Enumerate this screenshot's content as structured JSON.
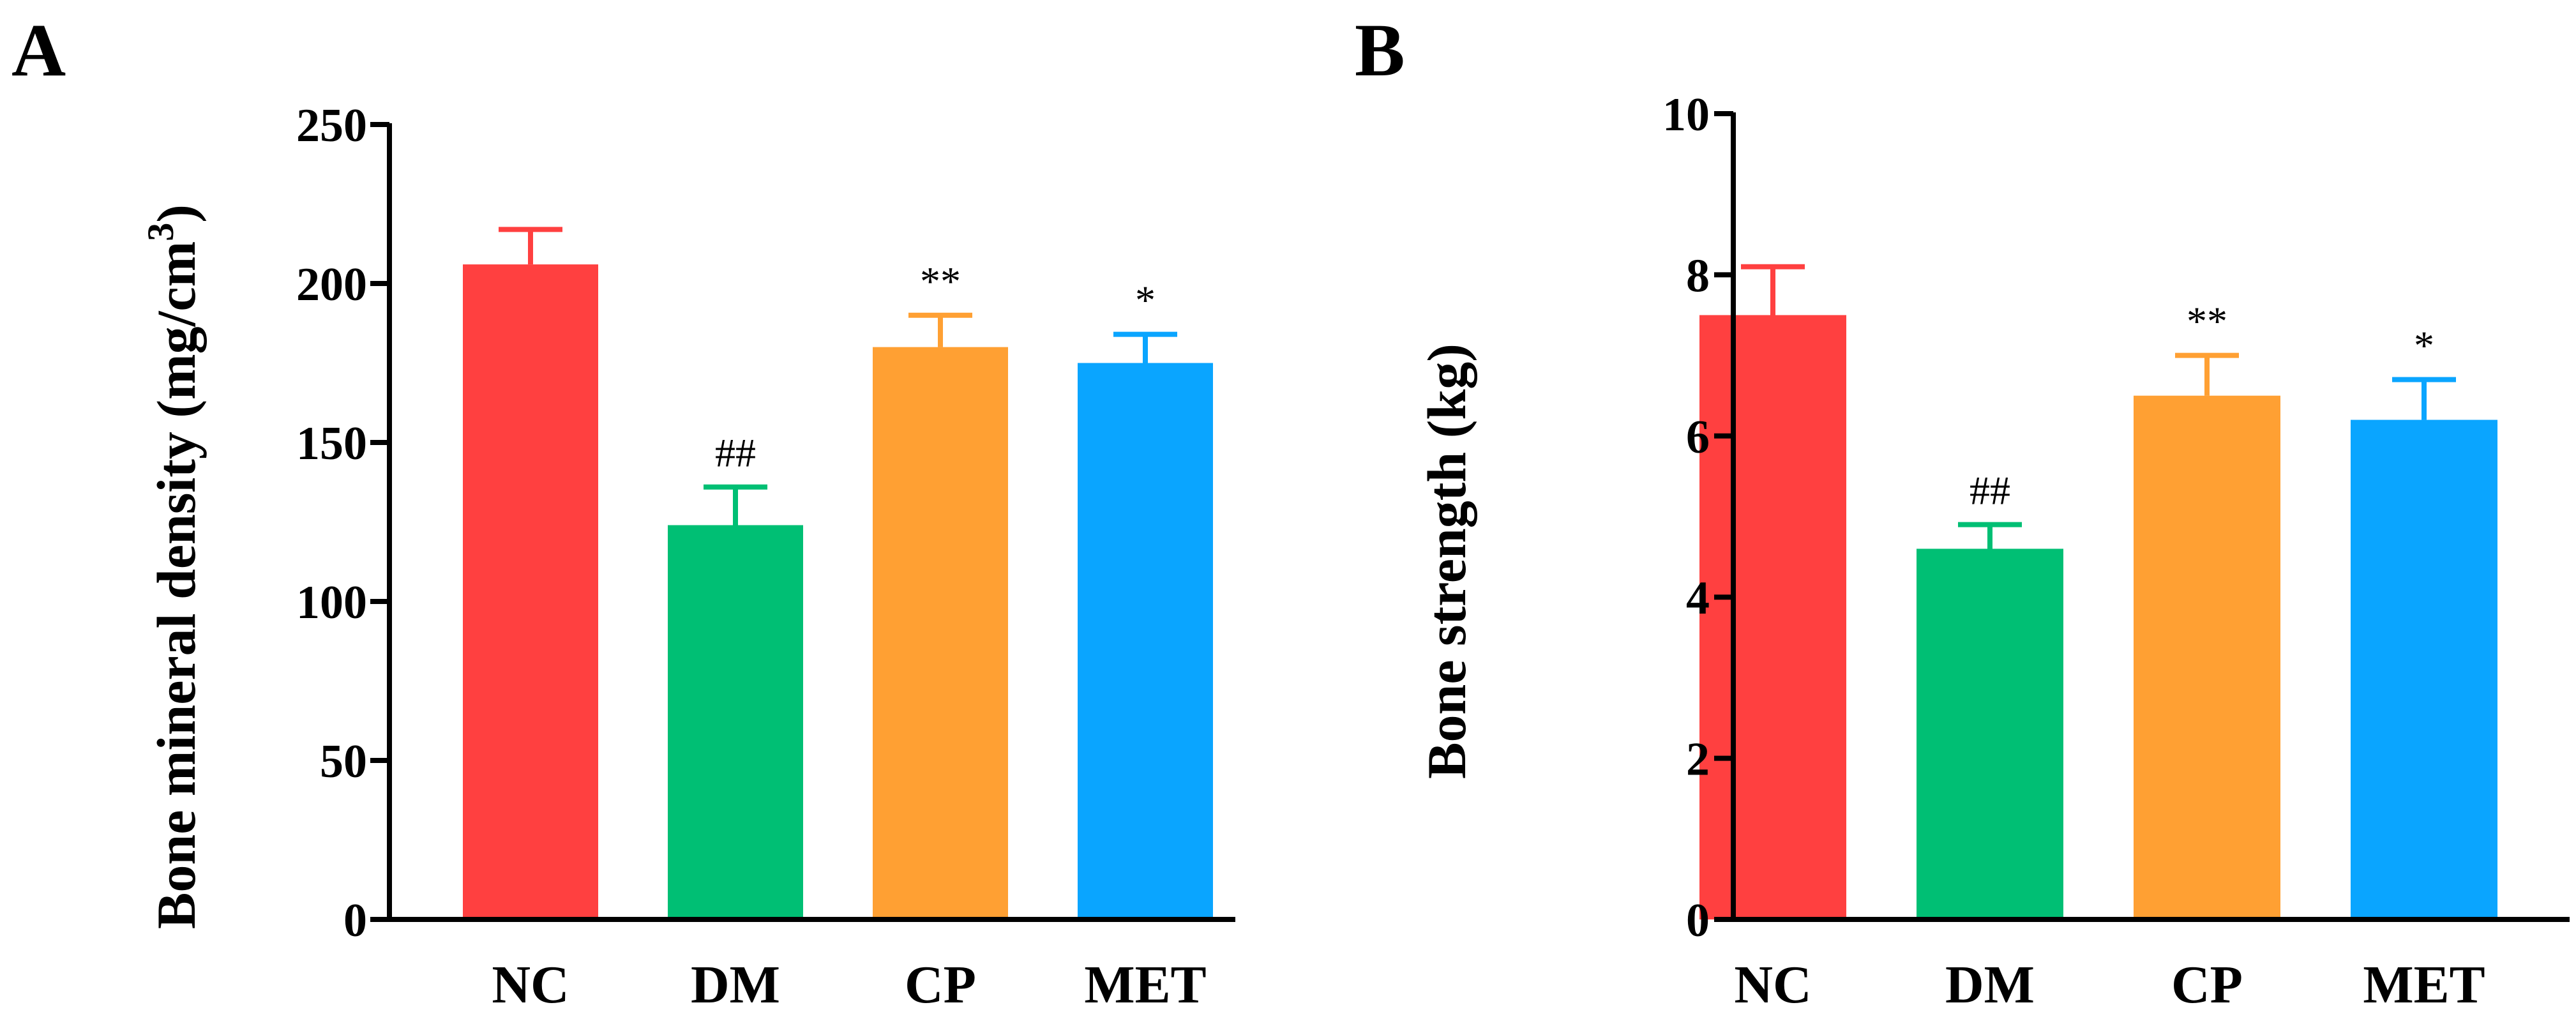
{
  "chart_data": [
    {
      "panel": "A",
      "type": "bar",
      "categories": [
        "NC",
        "DM",
        "CP",
        "MET"
      ],
      "values": [
        206,
        124,
        180,
        175
      ],
      "errors": [
        11,
        12,
        10,
        9
      ],
      "annotations": [
        "",
        "##",
        "**",
        "*"
      ],
      "colors": [
        "#ff4040",
        "#00bf74",
        "#ffa033",
        "#0aa5ff"
      ],
      "ylabel": "Bone mineral density (mg/cm",
      "ylabel_sup": "3",
      "ylabel_tail": ")",
      "ylim": [
        0,
        250
      ],
      "yticks": [
        0,
        50,
        100,
        150,
        200,
        250
      ],
      "ytick_labels": [
        "0",
        "50",
        "100",
        "150",
        "200",
        "250"
      ]
    },
    {
      "panel": "B",
      "type": "bar",
      "categories": [
        "NC",
        "DM",
        "CP",
        "MET"
      ],
      "values": [
        7.5,
        4.6,
        6.5,
        6.2
      ],
      "errors": [
        0.6,
        0.3,
        0.5,
        0.5
      ],
      "annotations": [
        "",
        "##",
        "**",
        "*"
      ],
      "colors": [
        "#ff4040",
        "#00bf74",
        "#ffa033",
        "#0aa5ff"
      ],
      "ylabel": "Bone strength (kg)",
      "ylim": [
        0,
        10
      ],
      "yticks": [
        0,
        2,
        4,
        6,
        8,
        10
      ],
      "ytick_labels": [
        "0",
        "2",
        "4",
        "6",
        "8",
        "10"
      ]
    }
  ]
}
